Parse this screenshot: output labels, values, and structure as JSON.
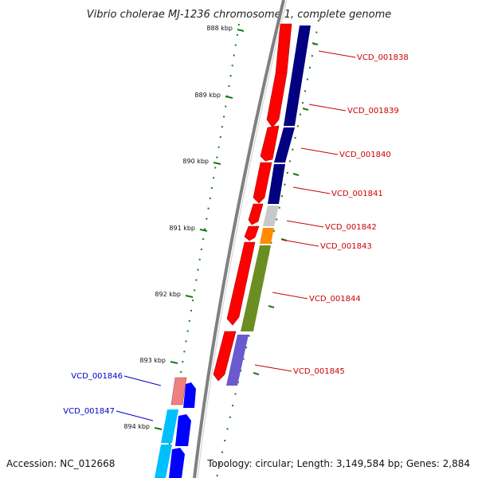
{
  "title": "Vibrio cholerae MJ-1236 chromosome 1, complete genome",
  "footer": {
    "accession": "Accession: NC_012668",
    "summary": "Topology: circular; Length: 3,149,584 bp; Genes: 2,884"
  },
  "scale": {
    "ticks": [
      "888 kbp",
      "889 kbp",
      "890 kbp",
      "891 kbp",
      "892 kbp",
      "893 kbp",
      "894 kbp"
    ]
  },
  "genes_plus": [
    {
      "label": "VCD_001838",
      "cds_color": "#000080"
    },
    {
      "label": "VCD_001839",
      "cds_color": "#000080"
    },
    {
      "label": "VCD_001840",
      "cds_color": "#000080"
    },
    {
      "label": "VCD_001841",
      "cds_color": "#000080"
    },
    {
      "label": "VCD_001842",
      "cds_color": "#c8c8c8"
    },
    {
      "label": "VCD_001843",
      "cds_color": "#ff8c00"
    },
    {
      "label": "VCD_001844",
      "cds_color": "#6b8e23"
    },
    {
      "label": "VCD_001845",
      "cds_color": "#6a5acd"
    }
  ],
  "genes_minus": [
    {
      "label": "VCD_001846",
      "cds_color": "#f08080"
    },
    {
      "label": "VCD_001847",
      "cds_color": "#00bfff"
    }
  ],
  "colors": {
    "gene_arrow": "#ff0000",
    "backbone": "#808080",
    "tick": "#1a7a1a",
    "label_plus": "#cc0000",
    "label_minus": "#0000cc",
    "minus_arrow": "#0000ff"
  }
}
